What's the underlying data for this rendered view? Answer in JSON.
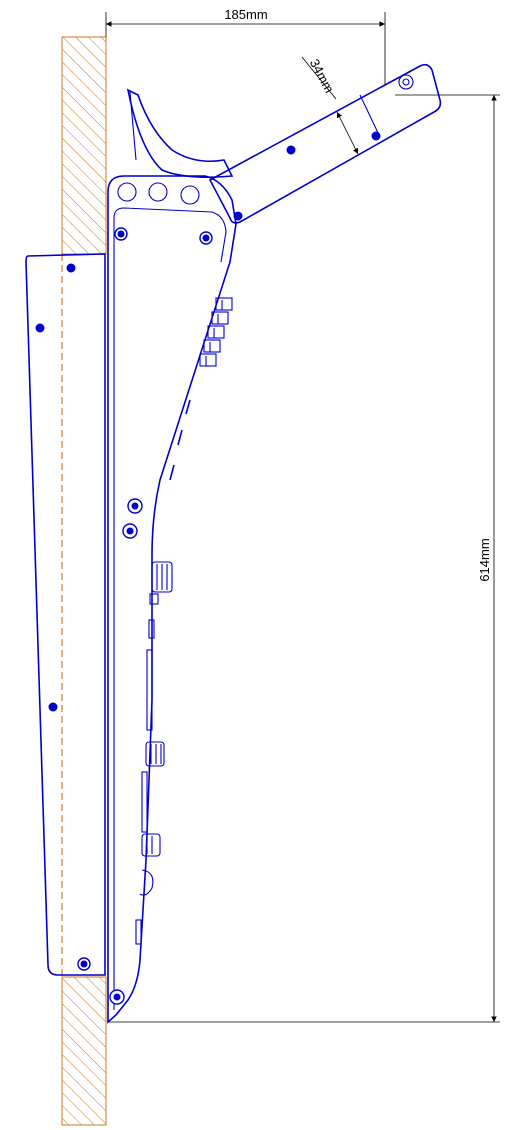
{
  "dimensions": {
    "width_label": "185mm",
    "height_label": "614mm",
    "arm_label": "34mm"
  },
  "colors": {
    "outline": "#0000cc",
    "wall_hatch": "#c87a2a",
    "dimension": "#000000",
    "background": "#ffffff"
  }
}
